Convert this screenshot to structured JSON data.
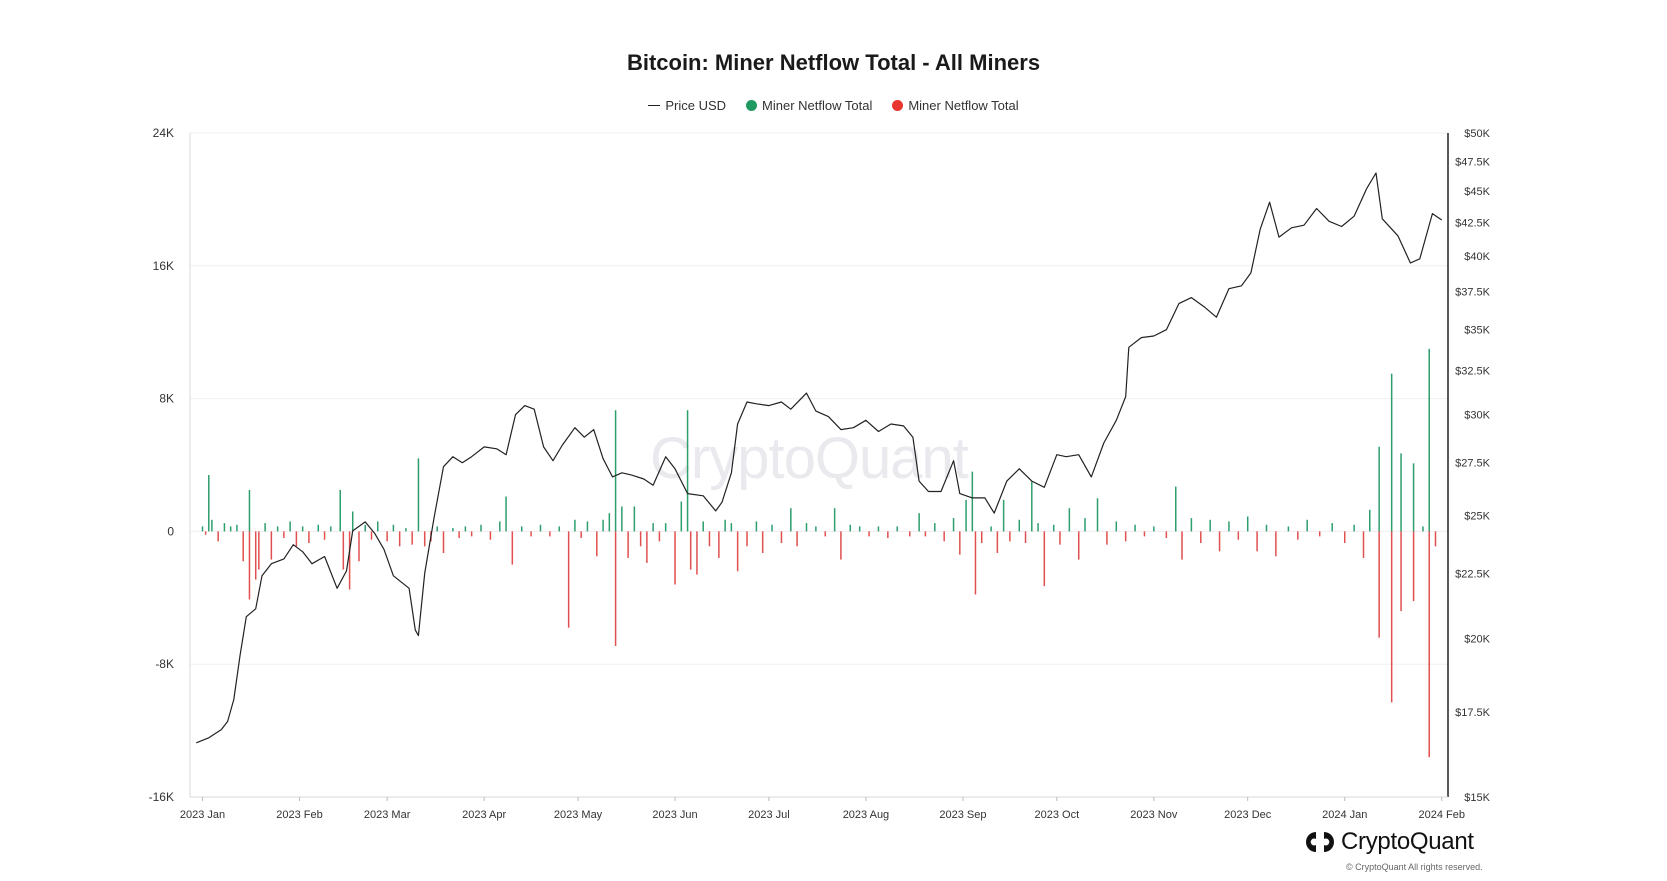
{
  "chart_data": {
    "type": "bar",
    "title": "Bitcoin: Miner Netflow Total - All Miners",
    "legend": [
      "Price USD",
      "Miner Netflow Total",
      "Miner Netflow Total"
    ],
    "legend_placement": "top-center",
    "grid": true,
    "colors": {
      "price": "#222222",
      "inflow": "#2e9e6d",
      "outflow": "#e05050",
      "legend_green": "#1f9a60",
      "legend_red": "#e8352f"
    },
    "x_ticks": [
      "2023 Jan",
      "2023 Feb",
      "2023 Mar",
      "2023 Apr",
      "2023 May",
      "2023 Jun",
      "2023 Jul",
      "2023 Aug",
      "2023 Sep",
      "2023 Oct",
      "2023 Nov",
      "2023 Dec",
      "2024 Jan",
      "2024 Feb"
    ],
    "xlim": [
      "2022-12-28",
      "2024-02-03"
    ],
    "y_left_ticks": [
      "24K",
      "16K",
      "8K",
      "0",
      "-8K",
      "-16K"
    ],
    "y_left_lim": [
      -16000,
      24000
    ],
    "y_right_ticks": [
      "$50K",
      "$47.5K",
      "$45K",
      "$42.5K",
      "$40K",
      "$37.5K",
      "$35K",
      "$32.5K",
      "$30K",
      "$27.5K",
      "$25K",
      "$22.5K",
      "$20K",
      "$17.5K",
      "$15K"
    ],
    "y_right_lim": [
      15000,
      50000
    ],
    "y_right_scale": "log",
    "price_series": {
      "name": "Price USD",
      "points": [
        [
          "2022-12-30",
          16550
        ],
        [
          "2023-01-03",
          16700
        ],
        [
          "2023-01-07",
          16950
        ],
        [
          "2023-01-09",
          17200
        ],
        [
          "2023-01-11",
          17900
        ],
        [
          "2023-01-13",
          19400
        ],
        [
          "2023-01-15",
          20800
        ],
        [
          "2023-01-18",
          21100
        ],
        [
          "2023-01-20",
          22400
        ],
        [
          "2023-01-23",
          22900
        ],
        [
          "2023-01-27",
          23100
        ],
        [
          "2023-01-30",
          23700
        ],
        [
          "2023-02-02",
          23400
        ],
        [
          "2023-02-05",
          22900
        ],
        [
          "2023-02-09",
          23200
        ],
        [
          "2023-02-13",
          21900
        ],
        [
          "2023-02-16",
          22600
        ],
        [
          "2023-02-18",
          24300
        ],
        [
          "2023-02-22",
          24700
        ],
        [
          "2023-02-25",
          24200
        ],
        [
          "2023-02-28",
          23500
        ],
        [
          "2023-03-03",
          22400
        ],
        [
          "2023-03-08",
          21900
        ],
        [
          "2023-03-10",
          20300
        ],
        [
          "2023-03-11",
          20100
        ],
        [
          "2023-03-13",
          22500
        ],
        [
          "2023-03-16",
          24900
        ],
        [
          "2023-03-19",
          27300
        ],
        [
          "2023-03-22",
          27800
        ],
        [
          "2023-03-25",
          27500
        ],
        [
          "2023-03-28",
          27800
        ],
        [
          "2023-04-01",
          28300
        ],
        [
          "2023-04-05",
          28200
        ],
        [
          "2023-04-08",
          27900
        ],
        [
          "2023-04-11",
          30000
        ],
        [
          "2023-04-14",
          30500
        ],
        [
          "2023-04-17",
          30300
        ],
        [
          "2023-04-20",
          28300
        ],
        [
          "2023-04-23",
          27600
        ],
        [
          "2023-04-26",
          28400
        ],
        [
          "2023-04-30",
          29300
        ],
        [
          "2023-05-03",
          28800
        ],
        [
          "2023-05-06",
          29200
        ],
        [
          "2023-05-09",
          27700
        ],
        [
          "2023-05-12",
          26800
        ],
        [
          "2023-05-15",
          27000
        ],
        [
          "2023-05-18",
          26900
        ],
        [
          "2023-05-22",
          26700
        ],
        [
          "2023-05-25",
          26400
        ],
        [
          "2023-05-29",
          27800
        ],
        [
          "2023-06-01",
          27200
        ],
        [
          "2023-06-05",
          26000
        ],
        [
          "2023-06-10",
          25900
        ],
        [
          "2023-06-14",
          25200
        ],
        [
          "2023-06-16",
          25600
        ],
        [
          "2023-06-19",
          27000
        ],
        [
          "2023-06-21",
          29500
        ],
        [
          "2023-06-24",
          30700
        ],
        [
          "2023-06-27",
          30600
        ],
        [
          "2023-07-01",
          30500
        ],
        [
          "2023-07-05",
          30700
        ],
        [
          "2023-07-08",
          30300
        ],
        [
          "2023-07-13",
          31200
        ],
        [
          "2023-07-16",
          30200
        ],
        [
          "2023-07-20",
          29900
        ],
        [
          "2023-07-24",
          29200
        ],
        [
          "2023-07-28",
          29300
        ],
        [
          "2023-08-01",
          29700
        ],
        [
          "2023-08-05",
          29100
        ],
        [
          "2023-08-09",
          29500
        ],
        [
          "2023-08-13",
          29400
        ],
        [
          "2023-08-16",
          28800
        ],
        [
          "2023-08-18",
          26600
        ],
        [
          "2023-08-21",
          26100
        ],
        [
          "2023-08-25",
          26100
        ],
        [
          "2023-08-29",
          27600
        ],
        [
          "2023-08-31",
          26000
        ],
        [
          "2023-09-04",
          25800
        ],
        [
          "2023-09-08",
          25800
        ],
        [
          "2023-09-11",
          25100
        ],
        [
          "2023-09-15",
          26600
        ],
        [
          "2023-09-19",
          27200
        ],
        [
          "2023-09-23",
          26600
        ],
        [
          "2023-09-27",
          26300
        ],
        [
          "2023-10-01",
          27900
        ],
        [
          "2023-10-04",
          27800
        ],
        [
          "2023-10-08",
          27900
        ],
        [
          "2023-10-12",
          26800
        ],
        [
          "2023-10-16",
          28500
        ],
        [
          "2023-10-20",
          29700
        ],
        [
          "2023-10-23",
          31000
        ],
        [
          "2023-10-24",
          33900
        ],
        [
          "2023-10-28",
          34500
        ],
        [
          "2023-11-01",
          34600
        ],
        [
          "2023-11-05",
          35000
        ],
        [
          "2023-11-09",
          36700
        ],
        [
          "2023-11-13",
          37100
        ],
        [
          "2023-11-17",
          36500
        ],
        [
          "2023-11-21",
          35800
        ],
        [
          "2023-11-25",
          37700
        ],
        [
          "2023-11-29",
          37900
        ],
        [
          "2023-12-02",
          38800
        ],
        [
          "2023-12-05",
          42000
        ],
        [
          "2023-12-08",
          44100
        ],
        [
          "2023-12-11",
          41400
        ],
        [
          "2023-12-15",
          42100
        ],
        [
          "2023-12-19",
          42300
        ],
        [
          "2023-12-23",
          43600
        ],
        [
          "2023-12-27",
          42600
        ],
        [
          "2023-12-31",
          42200
        ],
        [
          "2024-01-04",
          43000
        ],
        [
          "2024-01-08",
          45200
        ],
        [
          "2024-01-11",
          46500
        ],
        [
          "2024-01-13",
          42800
        ],
        [
          "2024-01-18",
          41500
        ],
        [
          "2024-01-22",
          39500
        ],
        [
          "2024-01-25",
          39800
        ],
        [
          "2024-01-29",
          43200
        ],
        [
          "2024-02-01",
          42700
        ]
      ]
    },
    "netflow_series": {
      "name": "Miner Netflow Total",
      "bars": [
        [
          "2023-01-01",
          300
        ],
        [
          "2023-01-02",
          -200
        ],
        [
          "2023-01-03",
          3400
        ],
        [
          "2023-01-04",
          700
        ],
        [
          "2023-01-06",
          -600
        ],
        [
          "2023-01-08",
          500
        ],
        [
          "2023-01-10",
          300
        ],
        [
          "2023-01-12",
          400
        ],
        [
          "2023-01-14",
          -1800
        ],
        [
          "2023-01-16",
          2500
        ],
        [
          "2023-01-16",
          -4100
        ],
        [
          "2023-01-18",
          -2900
        ],
        [
          "2023-01-19",
          -2300
        ],
        [
          "2023-01-21",
          500
        ],
        [
          "2023-01-23",
          -1700
        ],
        [
          "2023-01-25",
          300
        ],
        [
          "2023-01-27",
          -400
        ],
        [
          "2023-01-29",
          600
        ],
        [
          "2023-01-31",
          -900
        ],
        [
          "2023-02-02",
          300
        ],
        [
          "2023-02-04",
          -700
        ],
        [
          "2023-02-07",
          400
        ],
        [
          "2023-02-09",
          -500
        ],
        [
          "2023-02-11",
          300
        ],
        [
          "2023-02-14",
          2500
        ],
        [
          "2023-02-15",
          -2300
        ],
        [
          "2023-02-17",
          -3500
        ],
        [
          "2023-02-18",
          1200
        ],
        [
          "2023-02-20",
          -1800
        ],
        [
          "2023-02-22",
          400
        ],
        [
          "2023-02-24",
          -500
        ],
        [
          "2023-02-26",
          600
        ],
        [
          "2023-03-01",
          -600
        ],
        [
          "2023-03-03",
          400
        ],
        [
          "2023-03-05",
          -900
        ],
        [
          "2023-03-07",
          200
        ],
        [
          "2023-03-09",
          -800
        ],
        [
          "2023-03-11",
          4400
        ],
        [
          "2023-03-13",
          -900
        ],
        [
          "2023-03-15",
          -600
        ],
        [
          "2023-03-17",
          300
        ],
        [
          "2023-03-19",
          -1300
        ],
        [
          "2023-03-22",
          200
        ],
        [
          "2023-03-24",
          -400
        ],
        [
          "2023-03-26",
          300
        ],
        [
          "2023-03-28",
          -300
        ],
        [
          "2023-03-31",
          400
        ],
        [
          "2023-04-03",
          -500
        ],
        [
          "2023-04-06",
          600
        ],
        [
          "2023-04-08",
          2100
        ],
        [
          "2023-04-10",
          -2000
        ],
        [
          "2023-04-13",
          300
        ],
        [
          "2023-04-16",
          -300
        ],
        [
          "2023-04-19",
          400
        ],
        [
          "2023-04-22",
          -300
        ],
        [
          "2023-04-25",
          300
        ],
        [
          "2023-04-28",
          -5800
        ],
        [
          "2023-04-30",
          700
        ],
        [
          "2023-05-02",
          -400
        ],
        [
          "2023-05-04",
          600
        ],
        [
          "2023-05-07",
          -1500
        ],
        [
          "2023-05-09",
          700
        ],
        [
          "2023-05-11",
          1100
        ],
        [
          "2023-05-13",
          7300
        ],
        [
          "2023-05-13",
          -6900
        ],
        [
          "2023-05-15",
          1500
        ],
        [
          "2023-05-17",
          -1600
        ],
        [
          "2023-05-19",
          1500
        ],
        [
          "2023-05-21",
          -900
        ],
        [
          "2023-05-23",
          -1900
        ],
        [
          "2023-05-25",
          500
        ],
        [
          "2023-05-27",
          -600
        ],
        [
          "2023-05-29",
          500
        ],
        [
          "2023-06-01",
          -3200
        ],
        [
          "2023-06-03",
          1800
        ],
        [
          "2023-06-05",
          7300
        ],
        [
          "2023-06-06",
          -2300
        ],
        [
          "2023-06-08",
          -2600
        ],
        [
          "2023-06-10",
          600
        ],
        [
          "2023-06-12",
          -900
        ],
        [
          "2023-06-15",
          -1600
        ],
        [
          "2023-06-17",
          700
        ],
        [
          "2023-06-19",
          500
        ],
        [
          "2023-06-21",
          -2400
        ],
        [
          "2023-06-24",
          -900
        ],
        [
          "2023-06-27",
          600
        ],
        [
          "2023-06-29",
          -1300
        ],
        [
          "2023-07-02",
          400
        ],
        [
          "2023-07-05",
          -700
        ],
        [
          "2023-07-08",
          1400
        ],
        [
          "2023-07-10",
          -900
        ],
        [
          "2023-07-13",
          500
        ],
        [
          "2023-07-16",
          300
        ],
        [
          "2023-07-19",
          -300
        ],
        [
          "2023-07-22",
          1400
        ],
        [
          "2023-07-24",
          -1700
        ],
        [
          "2023-07-27",
          400
        ],
        [
          "2023-07-30",
          300
        ],
        [
          "2023-08-02",
          -300
        ],
        [
          "2023-08-05",
          300
        ],
        [
          "2023-08-08",
          -400
        ],
        [
          "2023-08-11",
          300
        ],
        [
          "2023-08-15",
          -300
        ],
        [
          "2023-08-18",
          1100
        ],
        [
          "2023-08-20",
          -300
        ],
        [
          "2023-08-23",
          500
        ],
        [
          "2023-08-26",
          -600
        ],
        [
          "2023-08-29",
          800
        ],
        [
          "2023-08-31",
          -1400
        ],
        [
          "2023-09-02",
          1900
        ],
        [
          "2023-09-04",
          3600
        ],
        [
          "2023-09-05",
          -3800
        ],
        [
          "2023-09-07",
          -700
        ],
        [
          "2023-09-10",
          300
        ],
        [
          "2023-09-12",
          -1300
        ],
        [
          "2023-09-14",
          1900
        ],
        [
          "2023-09-16",
          -600
        ],
        [
          "2023-09-19",
          700
        ],
        [
          "2023-09-21",
          -700
        ],
        [
          "2023-09-23",
          3000
        ],
        [
          "2023-09-25",
          500
        ],
        [
          "2023-09-27",
          -3300
        ],
        [
          "2023-09-30",
          400
        ],
        [
          "2023-10-02",
          -800
        ],
        [
          "2023-10-05",
          1400
        ],
        [
          "2023-10-08",
          -1700
        ],
        [
          "2023-10-10",
          800
        ],
        [
          "2023-10-14",
          2000
        ],
        [
          "2023-10-17",
          -800
        ],
        [
          "2023-10-20",
          600
        ],
        [
          "2023-10-23",
          -600
        ],
        [
          "2023-10-26",
          400
        ],
        [
          "2023-10-29",
          -300
        ],
        [
          "2023-11-01",
          300
        ],
        [
          "2023-11-05",
          -400
        ],
        [
          "2023-11-08",
          2700
        ],
        [
          "2023-11-10",
          -1700
        ],
        [
          "2023-11-13",
          800
        ],
        [
          "2023-11-16",
          -700
        ],
        [
          "2023-11-19",
          700
        ],
        [
          "2023-11-22",
          -1200
        ],
        [
          "2023-11-25",
          600
        ],
        [
          "2023-11-28",
          -500
        ],
        [
          "2023-12-01",
          900
        ],
        [
          "2023-12-04",
          -1200
        ],
        [
          "2023-12-07",
          400
        ],
        [
          "2023-12-10",
          -1500
        ],
        [
          "2023-12-14",
          300
        ],
        [
          "2023-12-17",
          -500
        ],
        [
          "2023-12-20",
          700
        ],
        [
          "2023-12-24",
          -300
        ],
        [
          "2023-12-28",
          500
        ],
        [
          "2024-01-01",
          -700
        ],
        [
          "2024-01-04",
          400
        ],
        [
          "2024-01-07",
          -1600
        ],
        [
          "2024-01-09",
          1300
        ],
        [
          "2024-01-12",
          5100
        ],
        [
          "2024-01-12",
          -6400
        ],
        [
          "2024-01-16",
          9500
        ],
        [
          "2024-01-16",
          -10300
        ],
        [
          "2024-01-19",
          4700
        ],
        [
          "2024-01-19",
          -4800
        ],
        [
          "2024-01-23",
          4100
        ],
        [
          "2024-01-23",
          -4200
        ],
        [
          "2024-01-26",
          300
        ],
        [
          "2024-01-28",
          11000
        ],
        [
          "2024-01-28",
          -13600
        ],
        [
          "2024-01-30",
          -900
        ]
      ]
    }
  },
  "watermark": "CryptoQuant",
  "brand": {
    "name": "CryptoQuant",
    "copyright": "© CryptoQuant All rights reserved."
  }
}
